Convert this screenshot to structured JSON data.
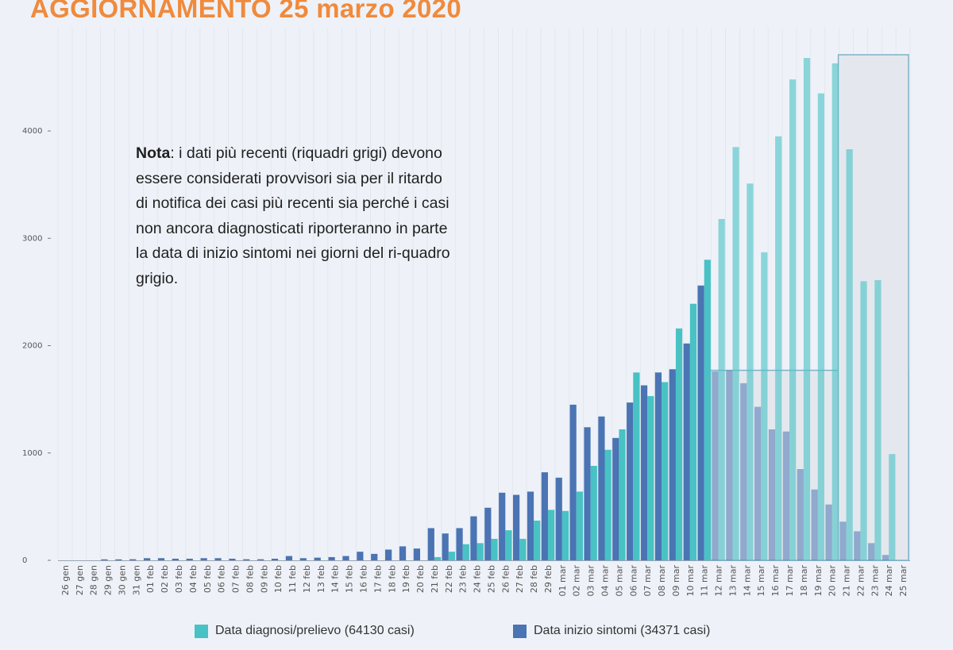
{
  "page": {
    "title": "AGGIORNAMENTO 25 marzo 2020"
  },
  "note": {
    "bold": "Nota",
    "text": ": i dati più recenti (riquadri grigi) devono essere considerati provvisori sia per il ritardo di notifica dei casi più recenti sia perché i casi non ancora diagnosticati riporteranno in parte la data di inizio sintomi nei giorni del ri-quadro grigio."
  },
  "legend": {
    "diagnosi": "Data diagnosi/prelievo (64130 casi)",
    "sintomi": "Data inizio sintomi (34371 casi)"
  },
  "colors": {
    "diagnosi": "#48c2c4",
    "sintomi": "#4a74b3",
    "title": "#f08a3c",
    "provisional_box": "#e4e8ee",
    "provisional_border": "#7fb3c6",
    "background": "#eef2f8"
  },
  "chart_data": {
    "type": "bar",
    "categories": [
      "26 gen",
      "27 gen",
      "28 gen",
      "29 gen",
      "30 gen",
      "31 gen",
      "01 feb",
      "02 feb",
      "03 feb",
      "04 feb",
      "05 feb",
      "06 feb",
      "07 feb",
      "08 feb",
      "09 feb",
      "10 feb",
      "11 feb",
      "12 feb",
      "13 feb",
      "14 feb",
      "15 feb",
      "16 feb",
      "17 feb",
      "18 feb",
      "19 feb",
      "20 feb",
      "21 feb",
      "22 feb",
      "23 feb",
      "24 feb",
      "25 feb",
      "26 feb",
      "27 feb",
      "28 feb",
      "29 feb",
      "01 mar",
      "02 mar",
      "03 mar",
      "04 mar",
      "05 mar",
      "06 mar",
      "07 mar",
      "08 mar",
      "09 mar",
      "10 mar",
      "11 mar",
      "12 mar",
      "13 mar",
      "14 mar",
      "15 mar",
      "16 mar",
      "17 mar",
      "18 mar",
      "19 mar",
      "20 mar",
      "21 mar",
      "22 mar",
      "23 mar",
      "24 mar",
      "25 mar"
    ],
    "series": [
      {
        "name": "Data diagnosi/prelievo (64130 casi)",
        "color": "#48c2c4",
        "values": [
          0,
          0,
          0,
          0,
          0,
          0,
          0,
          0,
          0,
          0,
          0,
          0,
          0,
          0,
          0,
          0,
          0,
          0,
          0,
          0,
          0,
          0,
          0,
          0,
          0,
          0,
          30,
          80,
          150,
          160,
          200,
          280,
          200,
          370,
          470,
          460,
          640,
          880,
          1030,
          1220,
          1750,
          1530,
          1660,
          2160,
          2390,
          2800,
          3180,
          3850,
          3510,
          2870,
          3950,
          4480,
          4680,
          4350,
          4630,
          3830,
          2600,
          2610,
          990,
          0
        ]
      },
      {
        "name": "Data inizio sintomi (34371 casi)",
        "color": "#4a74b3",
        "values": [
          0,
          0,
          0,
          5,
          5,
          10,
          20,
          20,
          15,
          15,
          20,
          20,
          15,
          10,
          10,
          15,
          40,
          20,
          25,
          30,
          40,
          80,
          60,
          100,
          130,
          110,
          300,
          250,
          300,
          410,
          490,
          630,
          610,
          640,
          820,
          770,
          1450,
          1240,
          1340,
          1140,
          1470,
          1630,
          1750,
          1780,
          2020,
          2560,
          1760,
          1770,
          1650,
          1430,
          1220,
          1200,
          850,
          660,
          520,
          360,
          270,
          160,
          50,
          0
        ]
      }
    ],
    "ylim": [
      0,
      4800
    ],
    "yticks": [
      "0",
      "1000",
      "2000",
      "3000",
      "4000"
    ],
    "provisional_from": "12 mar",
    "provisional_box2_from": "21 mar",
    "grid": "vertical",
    "legend_position": "bottom"
  }
}
